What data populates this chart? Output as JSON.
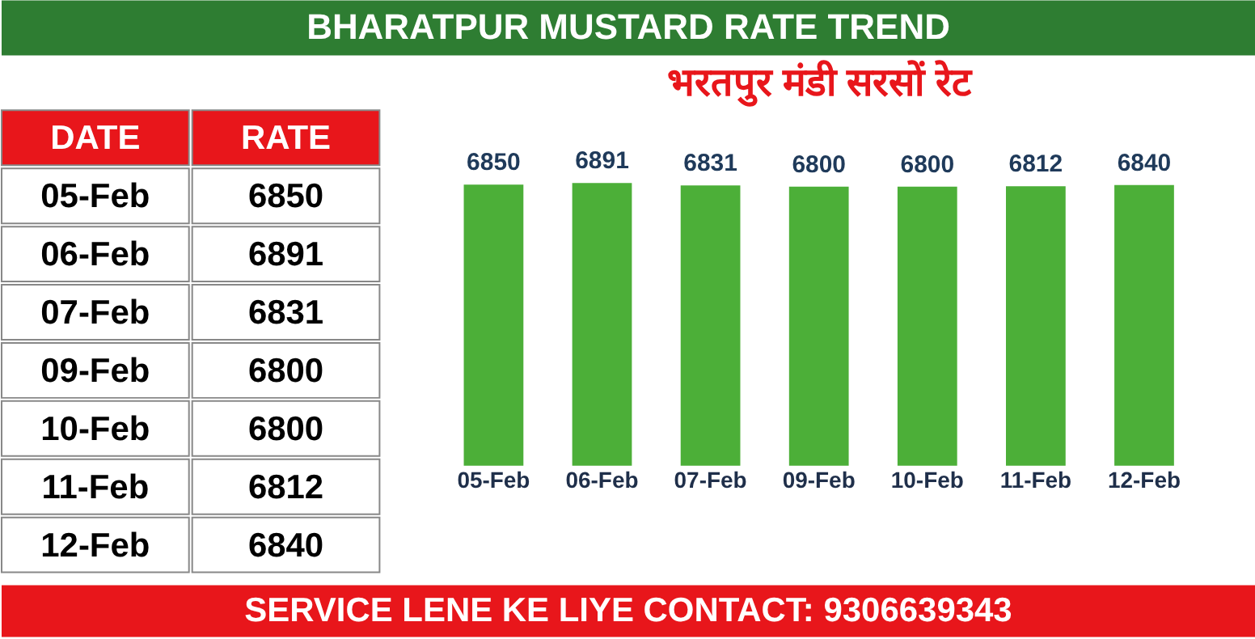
{
  "chart_data": {
    "type": "bar",
    "title": "BHARATPUR MUSTARD RATE TREND",
    "subtitle": "भरतपुर मंडी सरसों रेट",
    "categories": [
      "05-Feb",
      "06-Feb",
      "07-Feb",
      "09-Feb",
      "10-Feb",
      "11-Feb",
      "12-Feb"
    ],
    "values": [
      6850,
      6891,
      6831,
      6800,
      6800,
      6812,
      6840
    ],
    "colors": [
      "#4caf38",
      "#4caf38",
      "#4caf38",
      "#4caf38",
      "#4caf38",
      "#4caf38",
      "#4caf38"
    ],
    "value_labels": [
      "6850",
      "6891",
      "6831",
      "6800",
      "6800",
      "6812",
      "6840"
    ],
    "tick_labels": "x",
    "grid": false,
    "annotations": [
      "DATE",
      "RATE",
      "SERVICE LENE KE LIYE CONTACT: 9306639343"
    ]
  }
}
